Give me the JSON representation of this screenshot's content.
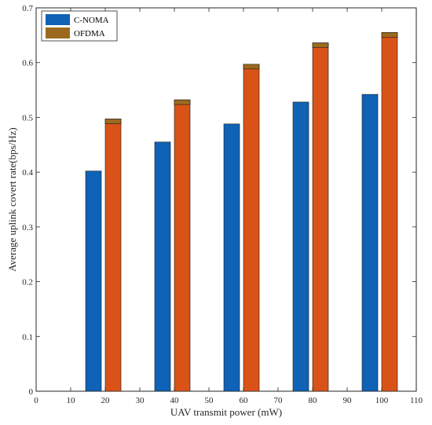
{
  "chart_data": {
    "type": "bar",
    "xlabel": "UAV transmit power (mW)",
    "ylabel": "Average uplink covert rate(bps/Hz)",
    "xlim": [
      0,
      110
    ],
    "ylim": [
      0,
      0.7
    ],
    "xticks": [
      "0",
      "10",
      "20",
      "30",
      "40",
      "50",
      "60",
      "70",
      "80",
      "90",
      "100",
      "110"
    ],
    "yticks": [
      "0",
      "0.1",
      "0.2",
      "0.3",
      "0.4",
      "0.5",
      "0.6",
      "0.7"
    ],
    "x": [
      20,
      40,
      60,
      80,
      100
    ],
    "series": [
      {
        "name": "C-NOMA",
        "color": "#0f62b5",
        "values": [
          0.402,
          0.455,
          0.488,
          0.528,
          0.542
        ]
      },
      {
        "name": "OFDMA",
        "color": "#d95319",
        "top_color": "#9c6a1e",
        "values": [
          0.497,
          0.532,
          0.597,
          0.636,
          0.655
        ]
      }
    ],
    "legend_position": "top-left",
    "grid": false
  }
}
